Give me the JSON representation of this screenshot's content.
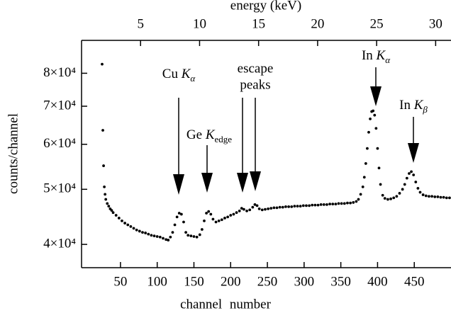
{
  "chart_data": {
    "type": "scatter",
    "x_label": "channel number",
    "x2_label": "energy (keV)",
    "y_label": "counts/channel",
    "color": "#000000",
    "log_y": true,
    "xlim": [
      -3,
      500
    ],
    "xticks": [
      50,
      100,
      150,
      200,
      250,
      300,
      350,
      400,
      450
    ],
    "x2lim": [
      0,
      31.3
    ],
    "x2ticks": [
      5,
      10,
      15,
      20,
      25,
      30
    ],
    "ylim": [
      36400,
      91400
    ],
    "yticks": [
      {
        "value": 40000,
        "label": "4×10⁴"
      },
      {
        "value": 50000,
        "label": "5×10⁴"
      },
      {
        "value": 60000,
        "label": "6×10⁴"
      },
      {
        "value": 70000,
        "label": "7×10⁴"
      },
      {
        "value": 80000,
        "label": "8×10⁴"
      }
    ],
    "annotations": [
      {
        "text": "Cu ",
        "symbol": "K",
        "sub": "α"
      },
      {
        "text": "Ge ",
        "symbol": "K",
        "sub": "edge"
      },
      {
        "lines": [
          "escape",
          "peaks"
        ]
      },
      {
        "text": "In ",
        "symbol": "K",
        "sub": "α"
      },
      {
        "text": "In ",
        "symbol": "K",
        "sub": "β"
      }
    ],
    "x": [
      25,
      26,
      27,
      28,
      29,
      30,
      32,
      34,
      36,
      38,
      40,
      44,
      48,
      52,
      56,
      60,
      64,
      68,
      72,
      76,
      80,
      84,
      88,
      92,
      96,
      100,
      104,
      108,
      112,
      115,
      118,
      121,
      124,
      127,
      130,
      133,
      136,
      139,
      142,
      146,
      150,
      154,
      158,
      161,
      164,
      167,
      170,
      173,
      176,
      180,
      184,
      188,
      192,
      196,
      200,
      204,
      208,
      212,
      215,
      218,
      222,
      226,
      230,
      233,
      236,
      239,
      243,
      247,
      251,
      255,
      259,
      263,
      267,
      271,
      275,
      279,
      283,
      287,
      291,
      295,
      299,
      303,
      307,
      311,
      315,
      319,
      323,
      327,
      331,
      335,
      339,
      343,
      347,
      351,
      355,
      359,
      363,
      367,
      371,
      374,
      377,
      380,
      382,
      384,
      386,
      388,
      390,
      392,
      394,
      396,
      398,
      400,
      402,
      404,
      407,
      410,
      414,
      418,
      422,
      426,
      430,
      434,
      437,
      440,
      443,
      446,
      449,
      452,
      455,
      458,
      462,
      466,
      470,
      474,
      478,
      482,
      486,
      490,
      494,
      498
    ],
    "values": [
      83000,
      63500,
      55000,
      50500,
      49000,
      48000,
      47200,
      46700,
      46200,
      45900,
      45500,
      45000,
      44500,
      44000,
      43600,
      43300,
      43000,
      42700,
      42400,
      42200,
      42000,
      41900,
      41700,
      41500,
      41400,
      41300,
      41200,
      41000,
      40800,
      40700,
      41200,
      42000,
      43300,
      44700,
      45400,
      45200,
      43800,
      42000,
      41500,
      41400,
      41300,
      41200,
      41600,
      42500,
      44000,
      45400,
      45700,
      45200,
      44300,
      43800,
      44000,
      44200,
      44500,
      44700,
      45000,
      45200,
      45500,
      45800,
      46300,
      46100,
      45800,
      46000,
      46500,
      47000,
      46800,
      46200,
      46000,
      46100,
      46200,
      46300,
      46400,
      46400,
      46500,
      46500,
      46600,
      46600,
      46600,
      46700,
      46700,
      46700,
      46800,
      46800,
      46800,
      46900,
      46900,
      46900,
      47000,
      47000,
      47000,
      47100,
      47100,
      47100,
      47200,
      47200,
      47200,
      47300,
      47300,
      47400,
      47600,
      48000,
      49000,
      50500,
      52500,
      55500,
      59000,
      63000,
      66500,
      68500,
      68700,
      67500,
      64000,
      59000,
      54500,
      51000,
      48800,
      48200,
      48000,
      48100,
      48300,
      48600,
      49200,
      50000,
      51000,
      52300,
      53300,
      53700,
      53000,
      51500,
      50200,
      49400,
      48900,
      48700,
      48600,
      48600,
      48500,
      48500,
      48400,
      48400,
      48300,
      48300
    ]
  }
}
